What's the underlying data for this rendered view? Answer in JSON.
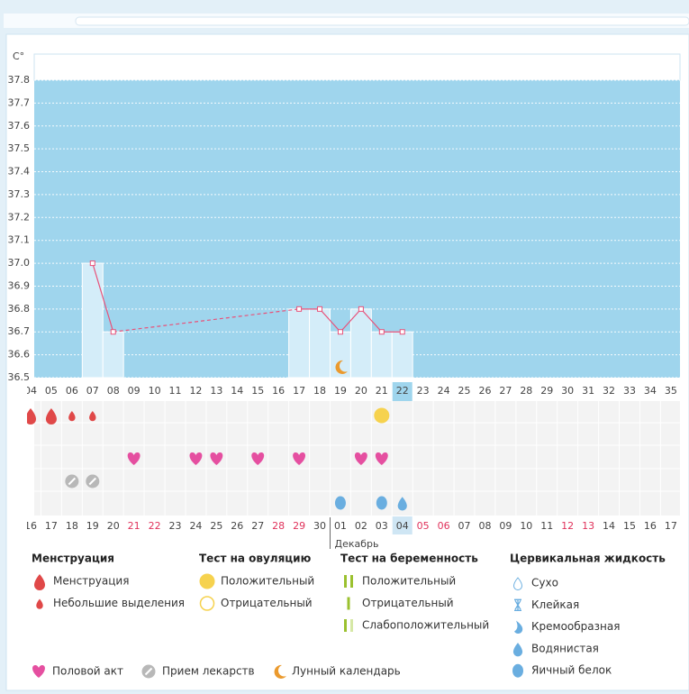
{
  "chart_data": {
    "type": "line",
    "y_axis_label": "C°",
    "ylim": [
      36.5,
      37.8
    ],
    "yticks": [
      36.5,
      36.6,
      36.7,
      36.8,
      36.9,
      {
        "value": 37,
        "label": "37.0"
      },
      37.1,
      37.2,
      37.3,
      37.4,
      37.5,
      37.6,
      37.7,
      37.8
    ],
    "grid": true,
    "x": [
      "04",
      "05",
      "06",
      "07",
      "08",
      "09",
      "10",
      "11",
      "12",
      "13",
      "14",
      "15",
      "16",
      "17",
      "18",
      "19",
      "20",
      "21",
      "22",
      "23",
      "24",
      "25",
      "26",
      "27",
      "28",
      "29",
      "30",
      "31",
      "32",
      "33",
      "34",
      "35"
    ],
    "today": 18,
    "series": [
      {
        "color": "#e8527a",
        "values": [
          null,
          null,
          null,
          37,
          36.7,
          null,
          null,
          null,
          null,
          null,
          null,
          null,
          null,
          36.8,
          36.8,
          36.7,
          36.8,
          36.7,
          36.7,
          null,
          null,
          null,
          null,
          null,
          null,
          null,
          null,
          null,
          null,
          null,
          null,
          null
        ]
      }
    ],
    "connect_gaps": "dashed",
    "temperature_icons": [
      null,
      null,
      null,
      null,
      null,
      null,
      null,
      null,
      null,
      null,
      null,
      null,
      null,
      null,
      null,
      "moon",
      null,
      null,
      null,
      null,
      null,
      null,
      null,
      null,
      null,
      null,
      null,
      null,
      null,
      null,
      null,
      null
    ],
    "icon_rows": [
      [
        "drop",
        "drop",
        "drop-small",
        "drop-small",
        null,
        null,
        null,
        null,
        null,
        null,
        null,
        null,
        null,
        null,
        null,
        null,
        null,
        "circle-yellow",
        null,
        null,
        null,
        null,
        null,
        null,
        null,
        null,
        null,
        null,
        null,
        null,
        null,
        null
      ],
      [
        null,
        null,
        null,
        null,
        null,
        null,
        null,
        null,
        null,
        null,
        null,
        null,
        null,
        null,
        null,
        null,
        null,
        null,
        null,
        null,
        null,
        null,
        null,
        null,
        null,
        null,
        null,
        null,
        null,
        null,
        null,
        null
      ],
      [
        null,
        null,
        null,
        null,
        null,
        "heart",
        null,
        null,
        "heart",
        "heart",
        null,
        "heart",
        null,
        "heart",
        null,
        null,
        "heart",
        "heart",
        null,
        null,
        null,
        null,
        null,
        null,
        null,
        null,
        null,
        null,
        null,
        null,
        null,
        null
      ],
      [
        null,
        null,
        "pill",
        "pill",
        null,
        null,
        null,
        null,
        null,
        null,
        null,
        null,
        null,
        null,
        null,
        null,
        null,
        null,
        null,
        null,
        null,
        null,
        null,
        null,
        null,
        null,
        null,
        null,
        null,
        null,
        null,
        null
      ],
      [
        null,
        null,
        null,
        null,
        null,
        null,
        null,
        null,
        null,
        null,
        null,
        null,
        null,
        null,
        null,
        "egg-white",
        null,
        "egg-white",
        "watery",
        null,
        null,
        null,
        null,
        null,
        null,
        null,
        null,
        null,
        null,
        null,
        null,
        null
      ]
    ],
    "dates": [
      "16",
      "17",
      "18",
      "19",
      "20",
      "21",
      "22",
      "23",
      "24",
      "25",
      "26",
      "27",
      "28",
      "29",
      "30",
      "01",
      "02",
      "03",
      "04",
      "05",
      "06",
      "07",
      "08",
      "09",
      "10",
      "11",
      "12",
      "13",
      "14",
      "15",
      "16",
      "17"
    ],
    "weekend": [
      false,
      false,
      false,
      false,
      false,
      true,
      true,
      false,
      false,
      false,
      false,
      false,
      true,
      true,
      false,
      false,
      false,
      false,
      false,
      true,
      true,
      false,
      false,
      false,
      false,
      false,
      true,
      true,
      false,
      false,
      false,
      false
    ],
    "month_label": "Декабрь",
    "month_start": 15,
    "legend": {
      "groups": [
        {
          "title": "Менструация",
          "items": [
            {
              "label": "Менструация",
              "icon": "drop"
            },
            {
              "label": "Небольшие выделения",
              "icon": "drop-small"
            }
          ]
        },
        {
          "title": "Тест на овуляцию",
          "items": [
            {
              "label": "Положительный",
              "icon": "circle-yellow"
            },
            {
              "label": "Отрицательный",
              "icon": "circle-outline"
            }
          ]
        },
        {
          "title": "Тест на беременность",
          "items": [
            {
              "label": "Положительный",
              "icon": "bars-2"
            },
            {
              "label": "Отрицательный",
              "icon": "bar-1"
            },
            {
              "label": "Слабоположительный",
              "icon": "bars-2-light"
            }
          ]
        },
        {
          "title": "Цервикальная жидкость",
          "items": [
            {
              "label": "Сухо",
              "icon": "dry"
            },
            {
              "label": "Клейкая",
              "icon": "sticky"
            },
            {
              "label": "Кремообразная",
              "icon": "creamy"
            },
            {
              "label": "Водянистая",
              "icon": "watery"
            },
            {
              "label": "Яичный белок",
              "icon": "egg-white"
            }
          ]
        }
      ],
      "other": [
        {
          "label": "Половой акт",
          "icon": "heart"
        },
        {
          "label": "Прием лекарств",
          "icon": "pill"
        },
        {
          "label": "Лунный календарь",
          "icon": "moon"
        }
      ]
    }
  }
}
